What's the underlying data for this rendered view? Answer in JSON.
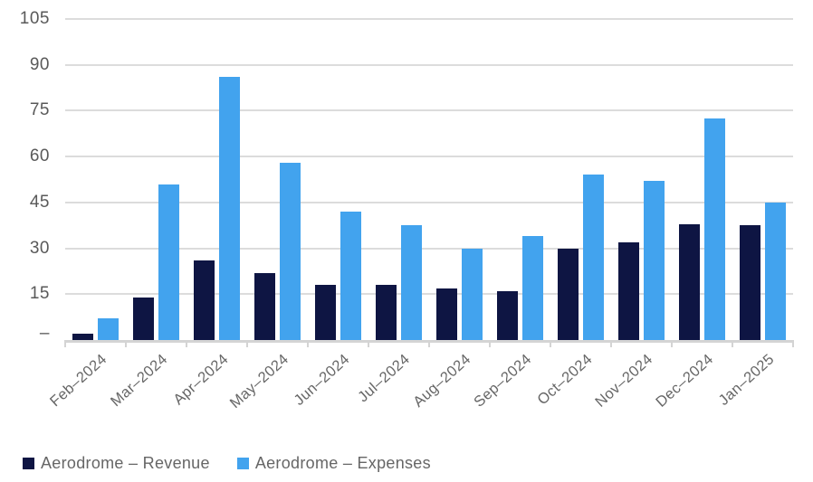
{
  "chart_data": {
    "type": "bar",
    "title": "",
    "xlabel": "",
    "ylabel": "",
    "categories": [
      "Feb–2024",
      "Mar–2024",
      "Apr–2024",
      "May–2024",
      "Jun–2024",
      "Jul–2024",
      "Aug–2024",
      "Sep–2024",
      "Oct–2024",
      "Nov–2024",
      "Dec–2024",
      "Jan–2025"
    ],
    "series": [
      {
        "name": "Aerodrome – Revenue",
        "color": "#0e1543",
        "values": [
          2,
          14,
          26,
          22,
          18,
          18,
          17,
          16,
          30,
          32,
          38,
          37.5
        ]
      },
      {
        "name": "Aerodrome – Expenses",
        "color": "#42a3ee",
        "values": [
          7,
          51,
          86,
          58,
          42,
          37.5,
          30,
          34,
          54,
          52,
          72.5,
          45
        ]
      }
    ],
    "ylim": [
      0,
      105
    ],
    "yticks": [
      105,
      90,
      75,
      60,
      45,
      30,
      15,
      0
    ],
    "ytick_labels": [
      "105",
      "90",
      "75",
      "60",
      "45",
      "30",
      "15",
      "–"
    ],
    "grid": true,
    "legend_position": "bottom-left",
    "x_label_rotation_deg": -42
  },
  "colors": {
    "background": "#ffffff",
    "gridline": "#dcdcdc",
    "axis_line": "#d4d4d4",
    "y_tick_text": "#595959",
    "x_tick_text": "#666666",
    "legend_text": "#666666",
    "revenue_bar": "#0e1543",
    "expenses_bar": "#42a3ee"
  }
}
